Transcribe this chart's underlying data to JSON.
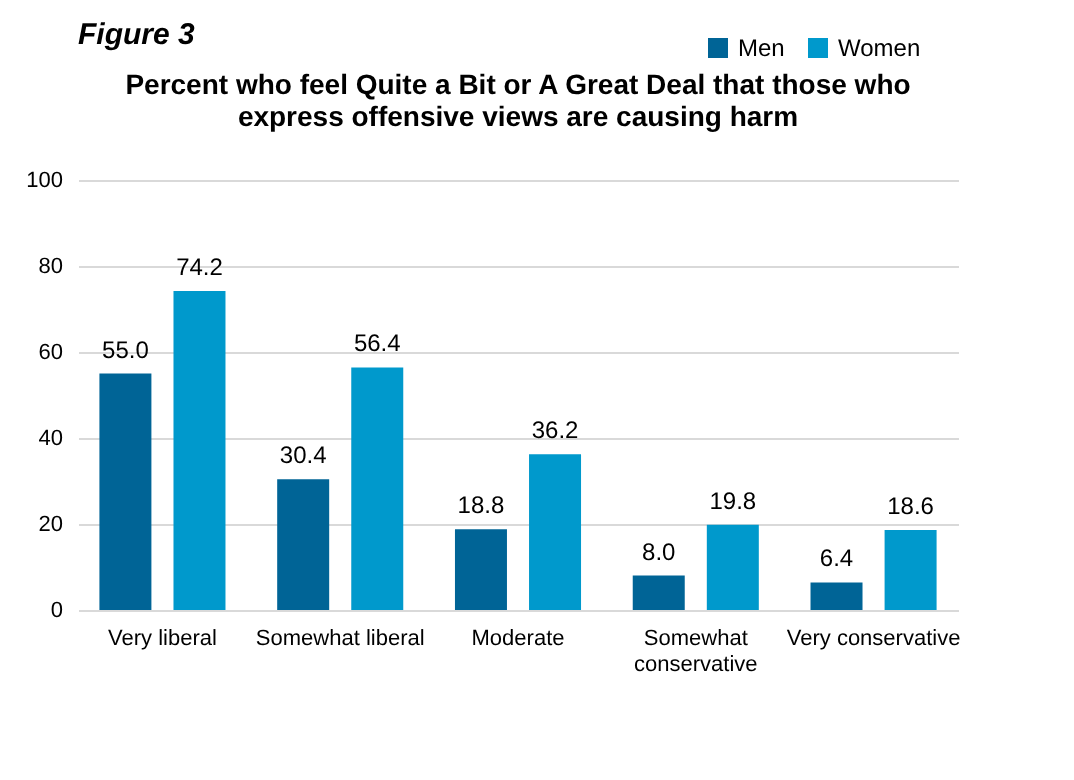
{
  "chart_data": {
    "type": "bar",
    "title": "Percent who feel Quite a Bit or A Great Deal that those who express offensive views are causing harm",
    "annotations": [
      "Figure 3"
    ],
    "categories": [
      "Very liberal",
      "Somewhat liberal",
      "Moderate",
      "Somewhat conservative",
      "Very conservative"
    ],
    "series": [
      {
        "name": "Men",
        "color": "#006496",
        "values": [
          55.0,
          30.4,
          18.8,
          8.0,
          6.4
        ],
        "value_labels": [
          "55.0",
          "30.4",
          "18.8",
          "8.0",
          "6.4"
        ]
      },
      {
        "name": "Women",
        "color": "#0099cc",
        "values": [
          74.2,
          56.4,
          36.2,
          19.8,
          18.6
        ],
        "value_labels": [
          "74.2",
          "56.4",
          "36.2",
          "19.8",
          "18.6"
        ]
      }
    ],
    "ylim": [
      0,
      100
    ],
    "yticks": [
      0,
      20,
      40,
      60,
      80,
      100
    ],
    "grid": "y",
    "legend": "top right"
  }
}
